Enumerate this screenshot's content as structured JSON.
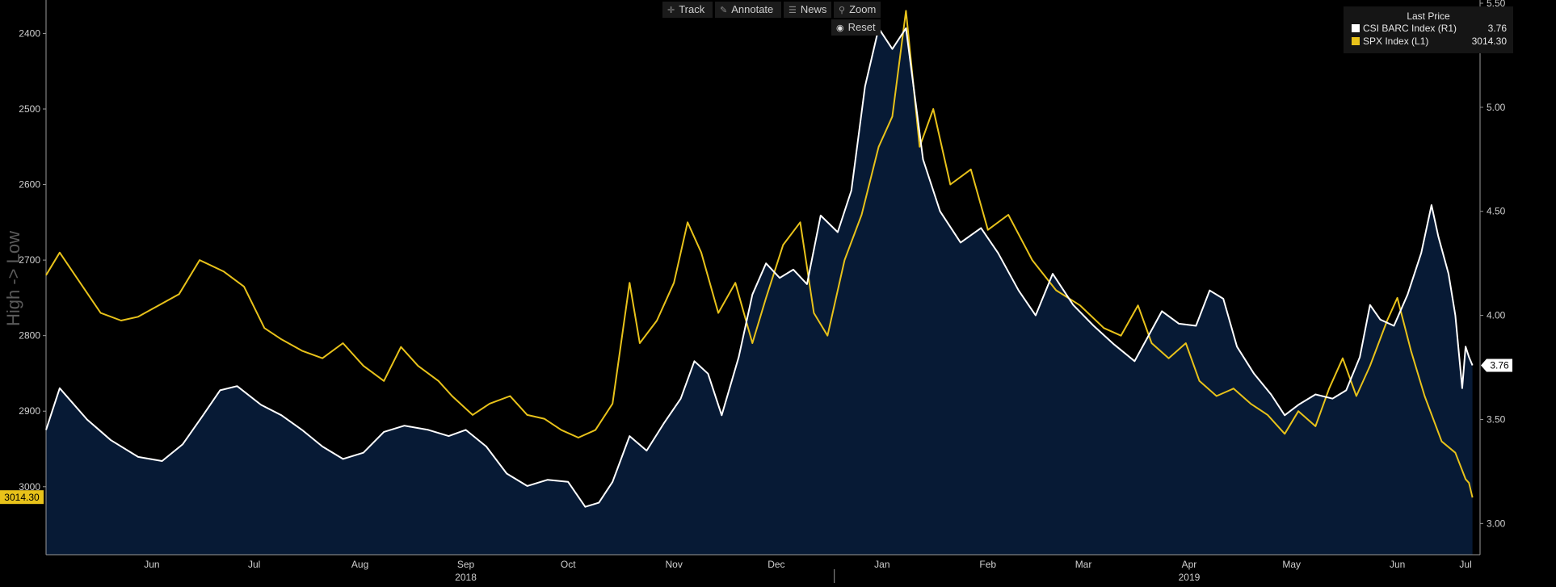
{
  "toolbar": {
    "track": "Track",
    "annotate": "Annotate",
    "news": "News",
    "zoom": "Zoom",
    "reset": "Reset"
  },
  "legend": {
    "header": "Last Price",
    "items": [
      {
        "label": "CSI BARC Index  (R1)",
        "value": "3.76",
        "color": "#ffffff"
      },
      {
        "label": "SPX Index  (L1)",
        "value": "3014.30",
        "color": "#e8c21a"
      }
    ]
  },
  "colors": {
    "background": "#000000",
    "area_fill": "#071a35",
    "csi_line": "#ffffff",
    "spx_line": "#e8c21a",
    "axis": "#9a9a9a"
  },
  "chart_data": {
    "type": "line",
    "left_axis_label": "High -> Low",
    "left_axis_inverted": true,
    "left_ylim": [
      2360,
      3090
    ],
    "left_ticks": [
      "2400",
      "2500",
      "2600",
      "2700",
      "2800",
      "2900",
      "3000"
    ],
    "right_ylim": [
      2.85,
      5.5
    ],
    "right_ticks": [
      "3.00",
      "3.50",
      "4.00",
      "4.50",
      "5.00",
      "5.50"
    ],
    "x_range": [
      "2018-05-15",
      "2019-07-09"
    ],
    "x_month_ticks": [
      {
        "label": "Jun",
        "date": "2018-06-15"
      },
      {
        "label": "Jul",
        "date": "2018-07-15"
      },
      {
        "label": "Aug",
        "date": "2018-08-15"
      },
      {
        "label": "Sep",
        "date": "2018-09-15"
      },
      {
        "label": "Oct",
        "date": "2018-10-15"
      },
      {
        "label": "Nov",
        "date": "2018-11-15"
      },
      {
        "label": "Dec",
        "date": "2018-12-15"
      },
      {
        "label": "Jan",
        "date": "2019-01-15"
      },
      {
        "label": "Feb",
        "date": "2019-02-15"
      },
      {
        "label": "Mar",
        "date": "2019-03-15"
      },
      {
        "label": "Apr",
        "date": "2019-04-15"
      },
      {
        "label": "May",
        "date": "2019-05-15"
      },
      {
        "label": "Jun",
        "date": "2019-06-15"
      },
      {
        "label": "Jul",
        "date": "2019-07-05"
      }
    ],
    "x_years": [
      {
        "label": "2018",
        "date": "2018-09-15"
      },
      {
        "label": "2019",
        "date": "2019-04-15"
      }
    ],
    "last_values": {
      "spx": "3014.30",
      "csi": "3.76"
    },
    "series": [
      {
        "name": "CSI BARC Index (R1)",
        "axis": "right",
        "color": "#ffffff",
        "points": [
          [
            "2018-05-15",
            3.45
          ],
          [
            "2018-05-19",
            3.65
          ],
          [
            "2018-05-27",
            3.5
          ],
          [
            "2018-06-03",
            3.4
          ],
          [
            "2018-06-11",
            3.32
          ],
          [
            "2018-06-18",
            3.3
          ],
          [
            "2018-06-24",
            3.38
          ],
          [
            "2018-06-30",
            3.52
          ],
          [
            "2018-07-05",
            3.64
          ],
          [
            "2018-07-10",
            3.66
          ],
          [
            "2018-07-17",
            3.57
          ],
          [
            "2018-07-23",
            3.52
          ],
          [
            "2018-07-29",
            3.45
          ],
          [
            "2018-08-04",
            3.37
          ],
          [
            "2018-08-10",
            3.31
          ],
          [
            "2018-08-16",
            3.34
          ],
          [
            "2018-08-22",
            3.44
          ],
          [
            "2018-08-28",
            3.47
          ],
          [
            "2018-09-04",
            3.45
          ],
          [
            "2018-09-10",
            3.42
          ],
          [
            "2018-09-15",
            3.45
          ],
          [
            "2018-09-21",
            3.37
          ],
          [
            "2018-09-27",
            3.24
          ],
          [
            "2018-10-03",
            3.18
          ],
          [
            "2018-10-09",
            3.21
          ],
          [
            "2018-10-15",
            3.2
          ],
          [
            "2018-10-20",
            3.08
          ],
          [
            "2018-10-24",
            3.1
          ],
          [
            "2018-10-28",
            3.2
          ],
          [
            "2018-11-02",
            3.42
          ],
          [
            "2018-11-07",
            3.35
          ],
          [
            "2018-11-12",
            3.48
          ],
          [
            "2018-11-17",
            3.6
          ],
          [
            "2018-11-21",
            3.78
          ],
          [
            "2018-11-25",
            3.72
          ],
          [
            "2018-11-29",
            3.52
          ],
          [
            "2018-12-04",
            3.8
          ],
          [
            "2018-12-08",
            4.1
          ],
          [
            "2018-12-12",
            4.25
          ],
          [
            "2018-12-16",
            4.18
          ],
          [
            "2018-12-20",
            4.22
          ],
          [
            "2018-12-24",
            4.15
          ],
          [
            "2018-12-28",
            4.48
          ],
          [
            "2019-01-02",
            4.4
          ],
          [
            "2019-01-06",
            4.6
          ],
          [
            "2019-01-10",
            5.1
          ],
          [
            "2019-01-14",
            5.38
          ],
          [
            "2019-01-18",
            5.28
          ],
          [
            "2019-01-22",
            5.38
          ],
          [
            "2019-01-27",
            4.75
          ],
          [
            "2019-02-01",
            4.5
          ],
          [
            "2019-02-07",
            4.35
          ],
          [
            "2019-02-13",
            4.42
          ],
          [
            "2019-02-18",
            4.3
          ],
          [
            "2019-02-24",
            4.12
          ],
          [
            "2019-03-01",
            4.0
          ],
          [
            "2019-03-06",
            4.2
          ],
          [
            "2019-03-12",
            4.05
          ],
          [
            "2019-03-18",
            3.95
          ],
          [
            "2019-03-24",
            3.86
          ],
          [
            "2019-03-30",
            3.78
          ],
          [
            "2019-04-03",
            3.9
          ],
          [
            "2019-04-07",
            4.02
          ],
          [
            "2019-04-12",
            3.96
          ],
          [
            "2019-04-17",
            3.95
          ],
          [
            "2019-04-21",
            4.12
          ],
          [
            "2019-04-25",
            4.08
          ],
          [
            "2019-04-29",
            3.85
          ],
          [
            "2019-05-04",
            3.72
          ],
          [
            "2019-05-09",
            3.62
          ],
          [
            "2019-05-13",
            3.52
          ],
          [
            "2019-05-17",
            3.57
          ],
          [
            "2019-05-22",
            3.62
          ],
          [
            "2019-05-27",
            3.6
          ],
          [
            "2019-05-31",
            3.64
          ],
          [
            "2019-06-04",
            3.8
          ],
          [
            "2019-06-07",
            4.05
          ],
          [
            "2019-06-10",
            3.98
          ],
          [
            "2019-06-14",
            3.95
          ],
          [
            "2019-06-18",
            4.1
          ],
          [
            "2019-06-22",
            4.3
          ],
          [
            "2019-06-25",
            4.53
          ],
          [
            "2019-06-27",
            4.38
          ],
          [
            "2019-06-30",
            4.2
          ],
          [
            "2019-07-02",
            4.0
          ],
          [
            "2019-07-04",
            3.65
          ],
          [
            "2019-07-05",
            3.85
          ],
          [
            "2019-07-06",
            3.8
          ],
          [
            "2019-07-07",
            3.76
          ]
        ]
      },
      {
        "name": "SPX Index (L1)",
        "axis": "left",
        "color": "#e8c21a",
        "points": [
          [
            "2018-05-15",
            2720
          ],
          [
            "2018-05-19",
            2690
          ],
          [
            "2018-05-25",
            2730
          ],
          [
            "2018-05-31",
            2770
          ],
          [
            "2018-06-06",
            2780
          ],
          [
            "2018-06-11",
            2775
          ],
          [
            "2018-06-17",
            2760
          ],
          [
            "2018-06-23",
            2745
          ],
          [
            "2018-06-29",
            2700
          ],
          [
            "2018-07-06",
            2715
          ],
          [
            "2018-07-12",
            2735
          ],
          [
            "2018-07-18",
            2790
          ],
          [
            "2018-07-23",
            2805
          ],
          [
            "2018-07-29",
            2820
          ],
          [
            "2018-08-04",
            2830
          ],
          [
            "2018-08-10",
            2810
          ],
          [
            "2018-08-16",
            2840
          ],
          [
            "2018-08-22",
            2860
          ],
          [
            "2018-08-27",
            2815
          ],
          [
            "2018-09-01",
            2840
          ],
          [
            "2018-09-07",
            2860
          ],
          [
            "2018-09-11",
            2880
          ],
          [
            "2018-09-17",
            2905
          ],
          [
            "2018-09-22",
            2890
          ],
          [
            "2018-09-28",
            2880
          ],
          [
            "2018-10-03",
            2905
          ],
          [
            "2018-10-08",
            2910
          ],
          [
            "2018-10-13",
            2925
          ],
          [
            "2018-10-18",
            2935
          ],
          [
            "2018-10-23",
            2925
          ],
          [
            "2018-10-28",
            2890
          ],
          [
            "2018-11-02",
            2730
          ],
          [
            "2018-11-05",
            2810
          ],
          [
            "2018-11-10",
            2780
          ],
          [
            "2018-11-15",
            2730
          ],
          [
            "2018-11-19",
            2650
          ],
          [
            "2018-11-23",
            2690
          ],
          [
            "2018-11-28",
            2770
          ],
          [
            "2018-12-03",
            2730
          ],
          [
            "2018-12-08",
            2810
          ],
          [
            "2018-12-12",
            2750
          ],
          [
            "2018-12-17",
            2680
          ],
          [
            "2018-12-22",
            2650
          ],
          [
            "2018-12-26",
            2770
          ],
          [
            "2018-12-30",
            2800
          ],
          [
            "2019-01-04",
            2700
          ],
          [
            "2019-01-09",
            2640
          ],
          [
            "2019-01-14",
            2550
          ],
          [
            "2019-01-18",
            2510
          ],
          [
            "2019-01-22",
            2370
          ],
          [
            "2019-01-26",
            2550
          ],
          [
            "2019-01-30",
            2500
          ],
          [
            "2019-02-04",
            2600
          ],
          [
            "2019-02-10",
            2580
          ],
          [
            "2019-02-15",
            2660
          ],
          [
            "2019-02-21",
            2640
          ],
          [
            "2019-02-28",
            2700
          ],
          [
            "2019-03-07",
            2740
          ],
          [
            "2019-03-14",
            2760
          ],
          [
            "2019-03-21",
            2790
          ],
          [
            "2019-03-26",
            2800
          ],
          [
            "2019-03-31",
            2760
          ],
          [
            "2019-04-04",
            2810
          ],
          [
            "2019-04-09",
            2830
          ],
          [
            "2019-04-14",
            2810
          ],
          [
            "2019-04-18",
            2860
          ],
          [
            "2019-04-23",
            2880
          ],
          [
            "2019-04-28",
            2870
          ],
          [
            "2019-05-03",
            2890
          ],
          [
            "2019-05-08",
            2905
          ],
          [
            "2019-05-13",
            2930
          ],
          [
            "2019-05-17",
            2900
          ],
          [
            "2019-05-22",
            2920
          ],
          [
            "2019-05-26",
            2870
          ],
          [
            "2019-05-30",
            2830
          ],
          [
            "2019-06-03",
            2880
          ],
          [
            "2019-06-07",
            2840
          ],
          [
            "2019-06-12",
            2780
          ],
          [
            "2019-06-15",
            2750
          ],
          [
            "2019-06-19",
            2820
          ],
          [
            "2019-06-23",
            2880
          ],
          [
            "2019-06-28",
            2940
          ],
          [
            "2019-07-02",
            2955
          ],
          [
            "2019-07-05",
            2990
          ],
          [
            "2019-07-06",
            2995
          ],
          [
            "2019-07-07",
            3014.3
          ]
        ]
      }
    ]
  }
}
